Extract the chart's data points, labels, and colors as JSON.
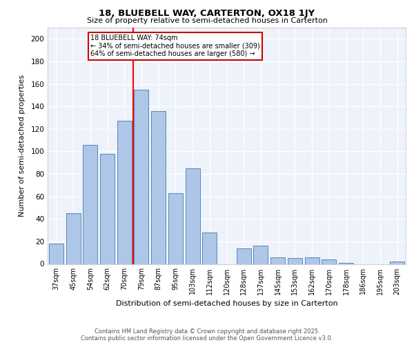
{
  "title1": "18, BLUEBELL WAY, CARTERTON, OX18 1JY",
  "title2": "Size of property relative to semi-detached houses in Carterton",
  "xlabel": "Distribution of semi-detached houses by size in Carterton",
  "ylabel": "Number of semi-detached properties",
  "categories": [
    "37sqm",
    "45sqm",
    "54sqm",
    "62sqm",
    "70sqm",
    "79sqm",
    "87sqm",
    "95sqm",
    "103sqm",
    "112sqm",
    "120sqm",
    "128sqm",
    "137sqm",
    "145sqm",
    "153sqm",
    "162sqm",
    "170sqm",
    "178sqm",
    "186sqm",
    "195sqm",
    "203sqm"
  ],
  "values": [
    18,
    45,
    106,
    98,
    127,
    155,
    136,
    63,
    85,
    28,
    0,
    14,
    16,
    6,
    5,
    6,
    4,
    1,
    0,
    0,
    2
  ],
  "bar_color": "#aec6e8",
  "bar_edge_color": "#5588bb",
  "red_line_x": 4.5,
  "annotation_title": "18 BLUEBELL WAY: 74sqm",
  "annotation_line1": "← 34% of semi-detached houses are smaller (309)",
  "annotation_line2": "64% of semi-detached houses are larger (580) →",
  "annotation_box_color": "#ffffff",
  "annotation_box_edge": "#cc0000",
  "ylim": [
    0,
    210
  ],
  "yticks": [
    0,
    20,
    40,
    60,
    80,
    100,
    120,
    140,
    160,
    180,
    200
  ],
  "footnote1": "Contains HM Land Registry data © Crown copyright and database right 2025.",
  "footnote2": "Contains public sector information licensed under the Open Government Licence v3.0.",
  "bg_color": "#eef2fa",
  "grid_color": "#ffffff"
}
